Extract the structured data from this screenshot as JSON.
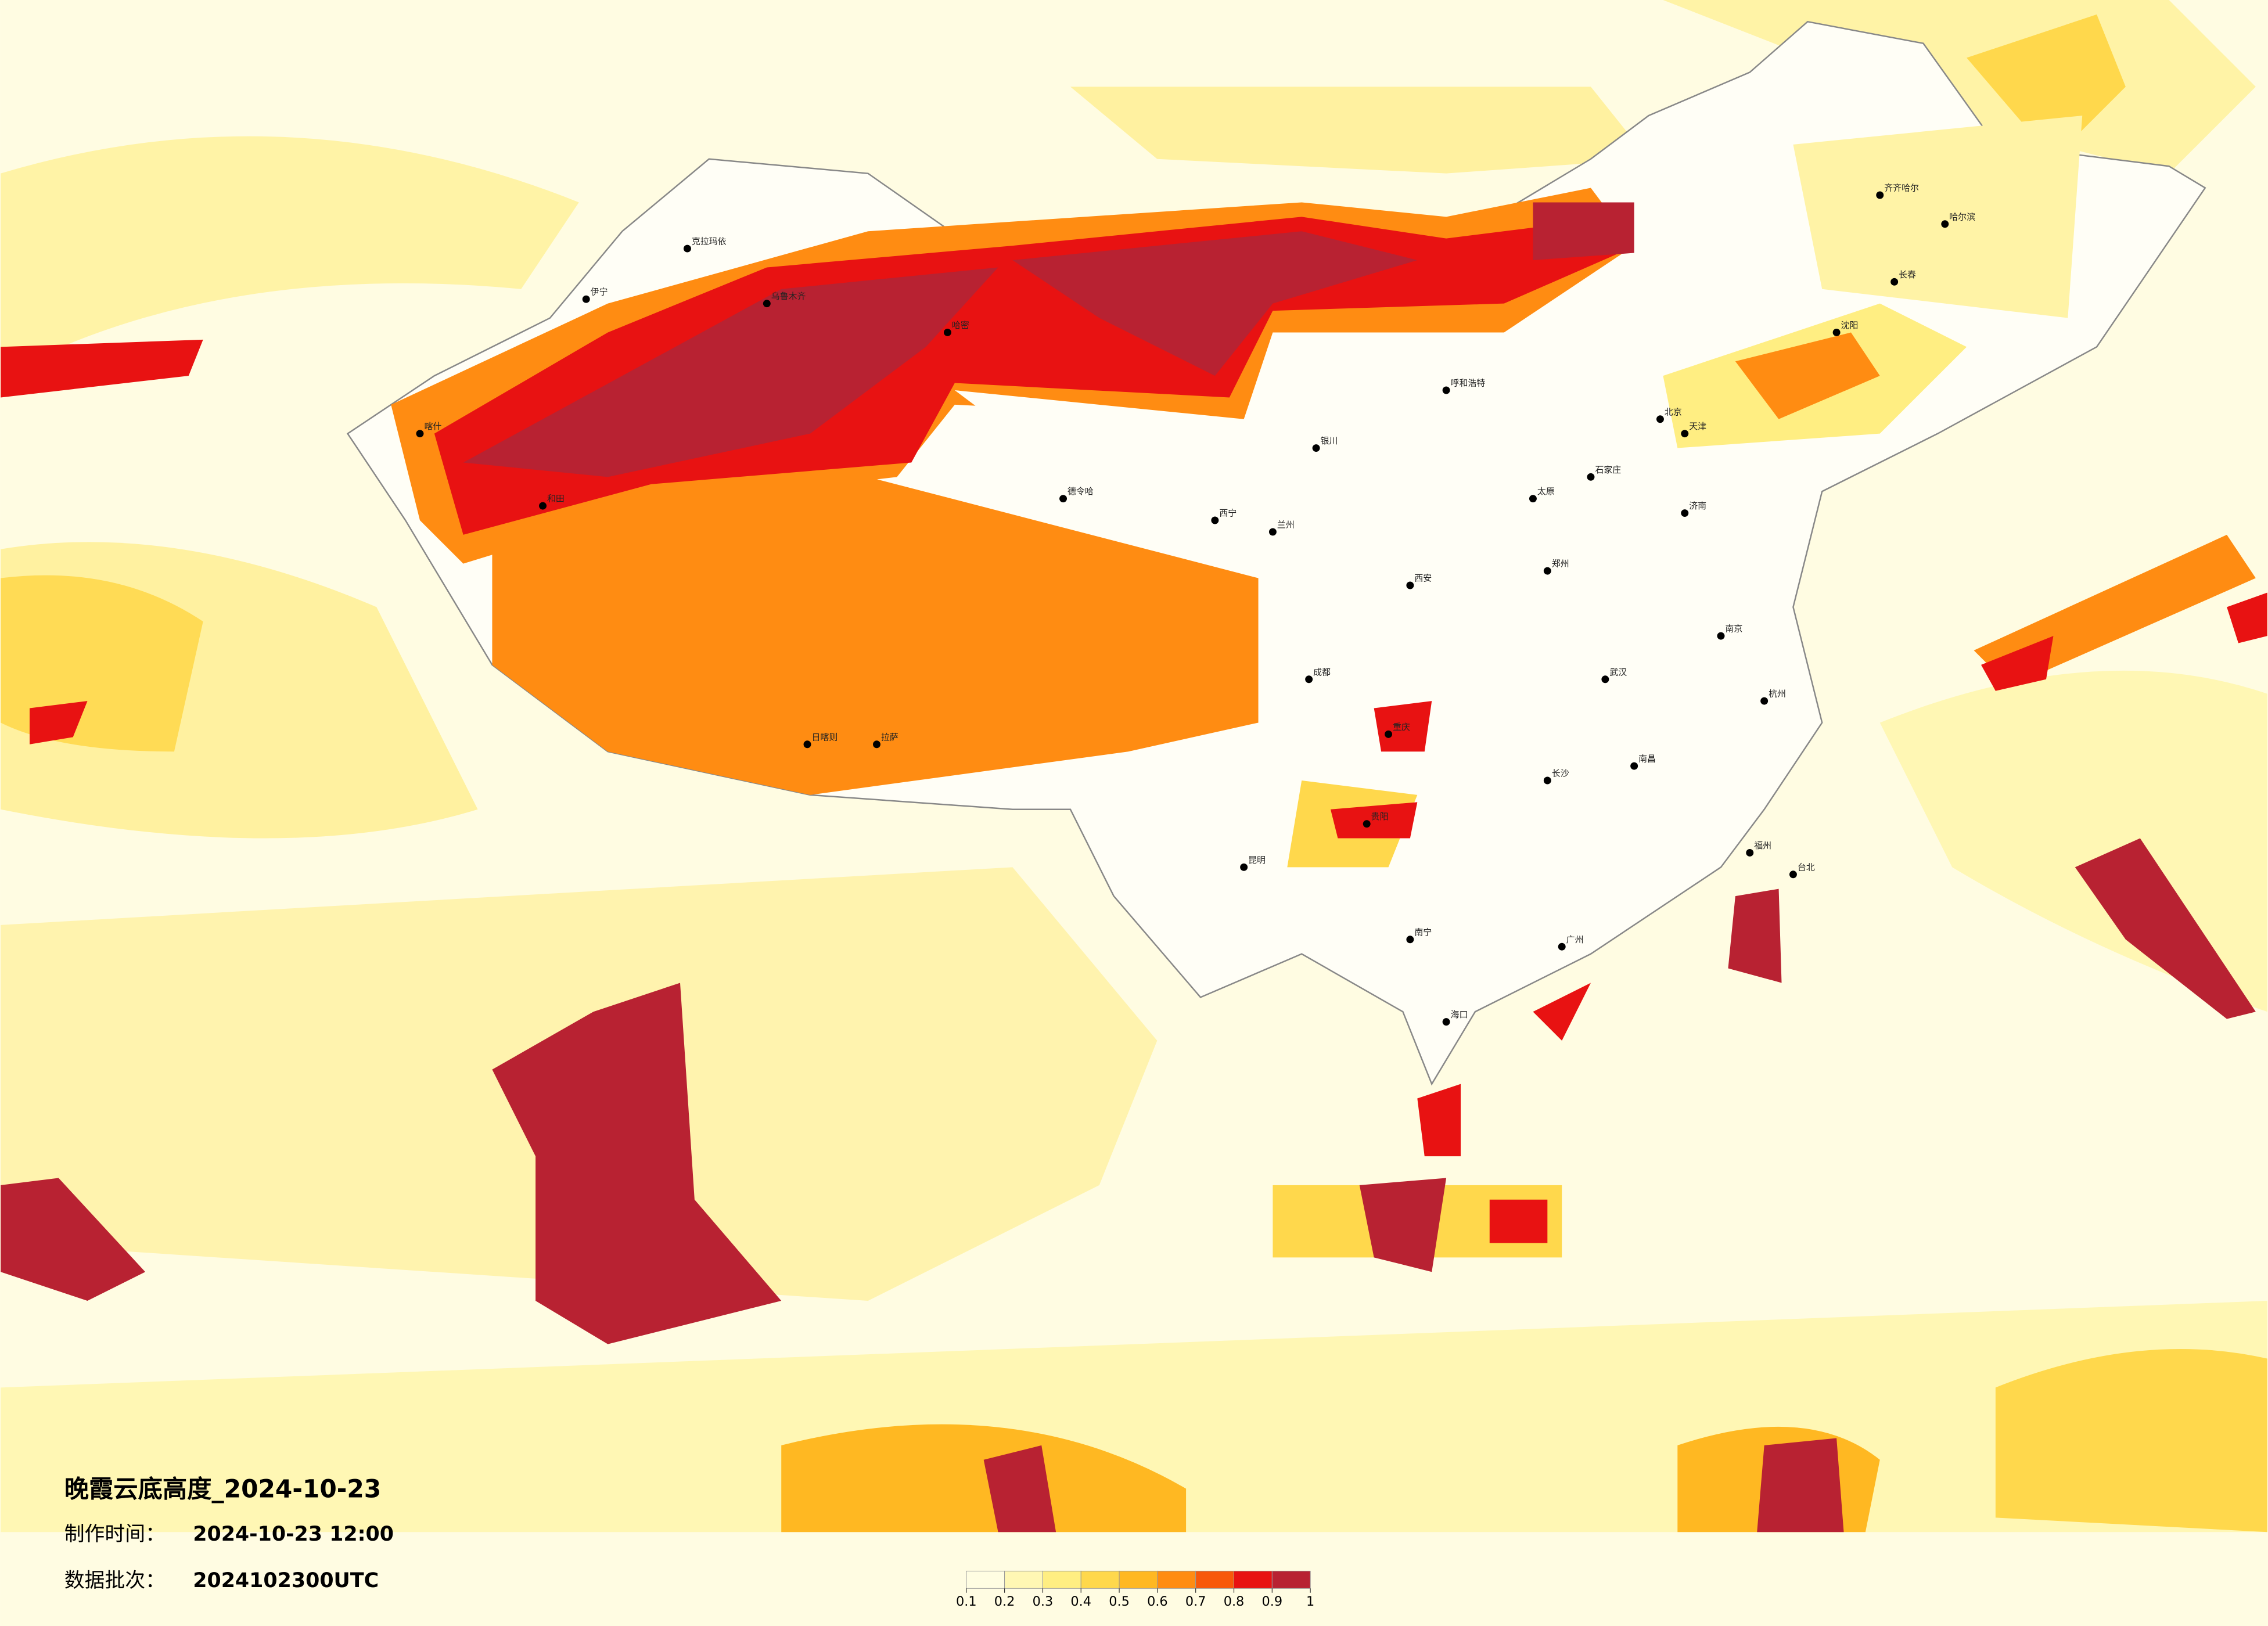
{
  "title": "晚霞云底高度_2024-10-23",
  "info": [
    {
      "label": "制作时间：",
      "value": "2024-10-23 12:00"
    },
    {
      "label": "数据批次：",
      "value": "2024102300UTC"
    }
  ],
  "colorbar": {
    "ticks": [
      0.1,
      0.2,
      0.3,
      0.4,
      0.5,
      0.6,
      0.7,
      0.8,
      0.9,
      1
    ],
    "colors": [
      "#fffde2",
      "#fff7b4",
      "#ffee82",
      "#ffd84c",
      "#ffb822",
      "#ff8c12",
      "#f8580a",
      "#e81212",
      "#b82232"
    ]
  },
  "cities": [
    "克拉玛依",
    "伊宁",
    "乌鲁木齐",
    "哈密",
    "喀什",
    "和田",
    "德令哈",
    "西宁",
    "兰州",
    "银川",
    "呼和浩特",
    "北京",
    "天津",
    "石家庄",
    "太原",
    "济南",
    "西安",
    "郑州",
    "成都",
    "重庆",
    "武汉",
    "南京",
    "杭州",
    "长沙",
    "南昌",
    "福州",
    "广州",
    "南宁",
    "昆明",
    "贵阳",
    "拉萨",
    "日喀则",
    "海口",
    "台北",
    "沈阳",
    "长春",
    "哈尔滨",
    "齐齐哈尔"
  ]
}
